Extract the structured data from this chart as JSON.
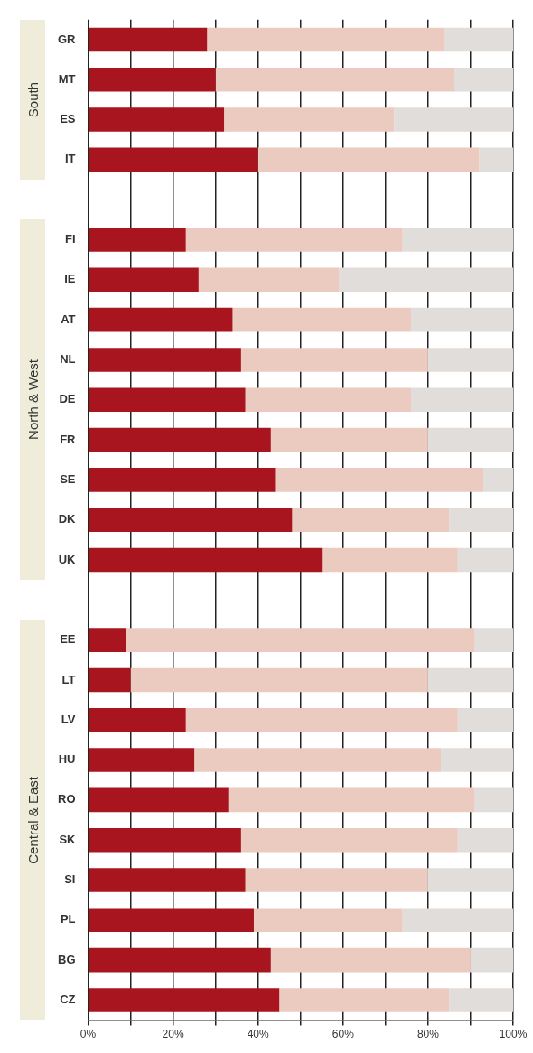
{
  "chart_data": {
    "type": "bar",
    "orientation": "horizontal",
    "stacked": true,
    "grid": "x",
    "categories": [
      "GR",
      "MT",
      "ES",
      "IT",
      null,
      "FI",
      "IE",
      "AT",
      "NL",
      "DE",
      "FR",
      "SE",
      "DK",
      "UK",
      null,
      "EE",
      "LT",
      "LV",
      "HU",
      "RO",
      "SK",
      "SI",
      "PL",
      "BG",
      "CZ"
    ],
    "series": [
      {
        "color": "#a8151f",
        "values": [
          28,
          30,
          32,
          40,
          null,
          23,
          26,
          34,
          36,
          37,
          43,
          44,
          48,
          55,
          null,
          9,
          10,
          23,
          25,
          33,
          36,
          37,
          39,
          43,
          45
        ]
      },
      {
        "color": "#ebcbbf",
        "values": [
          56,
          56,
          40,
          52,
          null,
          51,
          33,
          42,
          44,
          39,
          37,
          49,
          37,
          32,
          null,
          82,
          70,
          64,
          58,
          58,
          51,
          43,
          35,
          47,
          40
        ]
      },
      {
        "color": "#e0dddb",
        "values": [
          16,
          14,
          28,
          8,
          null,
          26,
          41,
          24,
          20,
          24,
          20,
          7,
          15,
          13,
          null,
          9,
          20,
          13,
          17,
          9,
          13,
          20,
          26,
          10,
          15
        ]
      }
    ],
    "xlim": [
      0,
      100
    ],
    "xticks": [
      {
        "value": 0,
        "label": "0%"
      },
      {
        "value": 10,
        "label": null
      },
      {
        "value": 20,
        "label": "20%"
      },
      {
        "value": 30,
        "label": null
      },
      {
        "value": 40,
        "label": "40%"
      },
      {
        "value": 50,
        "label": null
      },
      {
        "value": 60,
        "label": "60%"
      },
      {
        "value": 70,
        "label": null
      },
      {
        "value": 80,
        "label": "80%"
      },
      {
        "value": 90,
        "label": null
      },
      {
        "value": 100,
        "label": "100%"
      }
    ],
    "annotations": [
      "South",
      "North & West",
      "Central & East"
    ]
  }
}
